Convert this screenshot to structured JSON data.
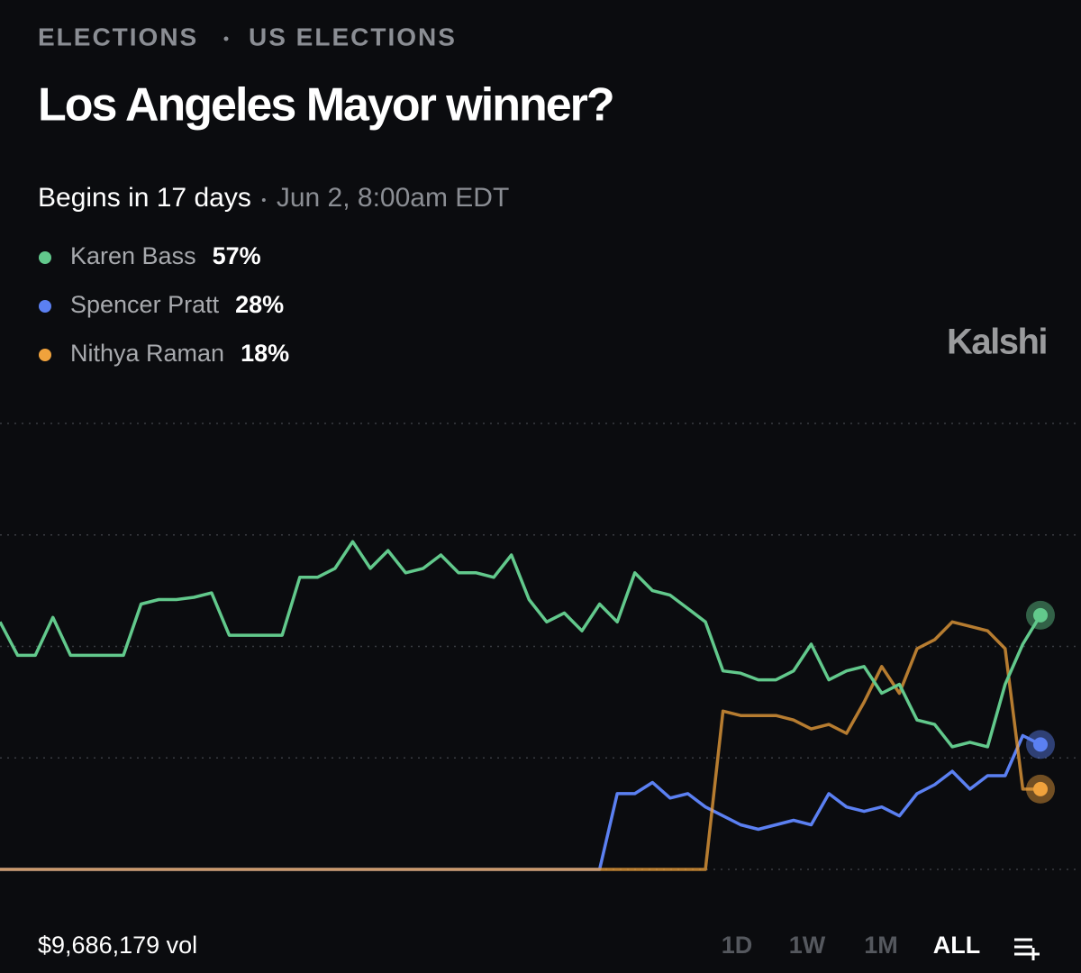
{
  "breadcrumb": [
    "ELECTIONS",
    "US ELECTIONS"
  ],
  "title": "Los Angeles Mayor winner?",
  "status": "Begins in 17 days",
  "start_time": "Jun 2, 8:00am EDT",
  "brand": "Kalshi",
  "volume": "$9,686,179 vol",
  "ranges": [
    "1D",
    "1W",
    "1M",
    "ALL"
  ],
  "active_range": "ALL",
  "chart_data": {
    "type": "line",
    "ylim": [
      0,
      100
    ],
    "yticks": [
      0,
      25,
      50,
      75,
      100
    ],
    "grid": true,
    "series": [
      {
        "name": "Karen Bass",
        "color": "#62c98c",
        "current_label": "57%",
        "values": [
          55.5,
          48,
          48,
          56.5,
          48,
          48,
          48,
          48,
          59.5,
          60.5,
          60.5,
          61,
          62,
          52.5,
          52.5,
          52.5,
          52.5,
          65.5,
          65.5,
          67.5,
          73.5,
          67.5,
          71.5,
          66.5,
          67.5,
          70.5,
          66.5,
          66.5,
          65.5,
          70.5,
          60.5,
          55.5,
          57.5,
          53.5,
          59.5,
          55.5,
          66.5,
          62.5,
          61.5,
          58.5,
          55.5,
          44.5,
          44,
          42.5,
          42.5,
          44.5,
          50.5,
          42.5,
          44.5,
          45.5,
          39.5,
          41.5,
          33.5,
          32.5,
          27.5,
          28.5,
          27.5,
          41.5,
          50.5,
          57
        ]
      },
      {
        "name": "Spencer Pratt",
        "color": "#5b80f2",
        "current_label": "28%",
        "values": [
          0,
          0,
          0,
          0,
          0,
          0,
          0,
          0,
          0,
          0,
          0,
          0,
          0,
          0,
          0,
          0,
          0,
          0,
          0,
          0,
          0,
          0,
          0,
          0,
          0,
          0,
          0,
          0,
          0,
          0,
          0,
          0,
          0,
          0,
          0,
          17,
          17,
          19.5,
          16,
          17,
          14,
          12,
          10,
          9,
          10,
          11,
          10,
          17,
          14,
          13,
          14,
          12,
          17,
          19,
          22,
          18,
          21,
          21,
          30,
          28
        ]
      },
      {
        "name": "Nithya Raman",
        "color": "#f0a23c",
        "current_label": "18%",
        "values": [
          0,
          0,
          0,
          0,
          0,
          0,
          0,
          0,
          0,
          0,
          0,
          0,
          0,
          0,
          0,
          0,
          0,
          0,
          0,
          0,
          0,
          0,
          0,
          0,
          0,
          0,
          0,
          0,
          0,
          0,
          0,
          0,
          0,
          0,
          0,
          0,
          0,
          0,
          0,
          0,
          0,
          35.5,
          34.5,
          34.5,
          34.5,
          33.5,
          31.5,
          32.5,
          30.5,
          37.5,
          45.5,
          39.5,
          49.5,
          51.5,
          55.5,
          54.5,
          53.5,
          49.5,
          18,
          18
        ]
      }
    ]
  }
}
